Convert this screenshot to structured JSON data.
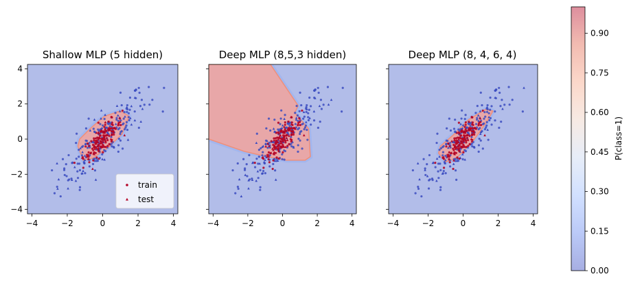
{
  "chart_data": [
    {
      "type": "scatter",
      "title": "Shallow MLP (5 hidden)",
      "xlim": [
        -4.25,
        4.25
      ],
      "ylim": [
        -4.25,
        4.25
      ],
      "xticks": [
        -4,
        -2,
        0,
        2,
        4
      ],
      "yticks": [
        -4,
        -2,
        0,
        2,
        4
      ],
      "xtick_labels": [
        "−4",
        "−2",
        "0",
        "2",
        "4"
      ],
      "ytick_labels": [
        "−4",
        "−2",
        "0",
        "2",
        "4"
      ],
      "show_yticklabels": true,
      "decision_region_shape": "narrow ellipse",
      "decision_region": [
        [
          -1.4,
          -0.4
        ],
        [
          -1.1,
          -1.2
        ],
        [
          -0.6,
          -1.1
        ],
        [
          0.3,
          -0.5
        ],
        [
          1.1,
          0.3
        ],
        [
          1.5,
          1.3
        ],
        [
          1.0,
          1.6
        ],
        [
          0.1,
          1.3
        ],
        [
          -0.7,
          0.6
        ],
        [
          -1.3,
          0.0
        ]
      ],
      "legend": {
        "position": "lower-right",
        "entries": [
          "train",
          "test"
        ]
      }
    },
    {
      "type": "scatter",
      "title": "Deep MLP (8,5,3 hidden)",
      "xlim": [
        -4.25,
        4.25
      ],
      "ylim": [
        -4.25,
        4.25
      ],
      "xticks": [
        -4,
        -2,
        0,
        2,
        4
      ],
      "yticks": [
        -4,
        -2,
        0,
        2,
        4
      ],
      "xtick_labels": [
        "−4",
        "−2",
        "0",
        "2",
        "4"
      ],
      "ytick_labels": [
        "−4",
        "−2",
        "0",
        "2",
        "4"
      ],
      "show_yticklabels": false,
      "decision_region_shape": "large polygon",
      "decision_region": [
        [
          -4.25,
          4.25
        ],
        [
          -0.7,
          4.25
        ],
        [
          0.9,
          1.9
        ],
        [
          0.7,
          1.5
        ],
        [
          1.5,
          0.6
        ],
        [
          1.6,
          -1.0
        ],
        [
          1.3,
          -1.2
        ],
        [
          0.2,
          -1.2
        ],
        [
          -0.9,
          -1.0
        ],
        [
          -2.2,
          -0.7
        ],
        [
          -4.25,
          0.0
        ]
      ],
      "legend": null
    },
    {
      "type": "scatter",
      "title": "Deep MLP (8, 4, 6, 4)",
      "xlim": [
        -4.25,
        4.25
      ],
      "ylim": [
        -4.25,
        4.25
      ],
      "xticks": [
        -4,
        -2,
        0,
        2,
        4
      ],
      "yticks": [
        -4,
        -2,
        0,
        2,
        4
      ],
      "xtick_labels": [
        "−4",
        "−2",
        "0",
        "2",
        "4"
      ],
      "ytick_labels": [
        "−4",
        "−2",
        "0",
        "2",
        "4"
      ],
      "show_yticklabels": false,
      "decision_region_shape": "narrow ellipse",
      "decision_region": [
        [
          -1.4,
          -0.8
        ],
        [
          -1.0,
          -1.3
        ],
        [
          -0.4,
          -1.1
        ],
        [
          0.5,
          -0.2
        ],
        [
          1.3,
          0.9
        ],
        [
          1.7,
          1.6
        ],
        [
          1.3,
          1.7
        ],
        [
          0.3,
          1.1
        ],
        [
          -0.6,
          0.2
        ],
        [
          -1.3,
          -0.4
        ]
      ],
      "legend": null
    }
  ],
  "colorbar": {
    "label": "P(class=1)",
    "range": [
      0,
      1
    ],
    "ticks": [
      0.0,
      0.15,
      0.3,
      0.45,
      0.6,
      0.75,
      0.9
    ],
    "tick_labels": [
      "0.00",
      "0.15",
      "0.30",
      "0.45",
      "0.60",
      "0.75",
      "0.90"
    ]
  },
  "colors": {
    "background_low": "#b2bde9",
    "region_high": "#e8a7a8",
    "region_edge": "#f08f79",
    "contour_blue": "#9fb4ef",
    "point_blue": "#3b4cc0",
    "point_red": "#b40426",
    "spine": "#000000",
    "colormap": [
      "#3b4cc0",
      "#6788ee",
      "#9abbff",
      "#c9d7f0",
      "#edd1c2",
      "#f7a889",
      "#e26952",
      "#b40426"
    ]
  },
  "legend_labels": {
    "train": "train",
    "test": "test"
  }
}
